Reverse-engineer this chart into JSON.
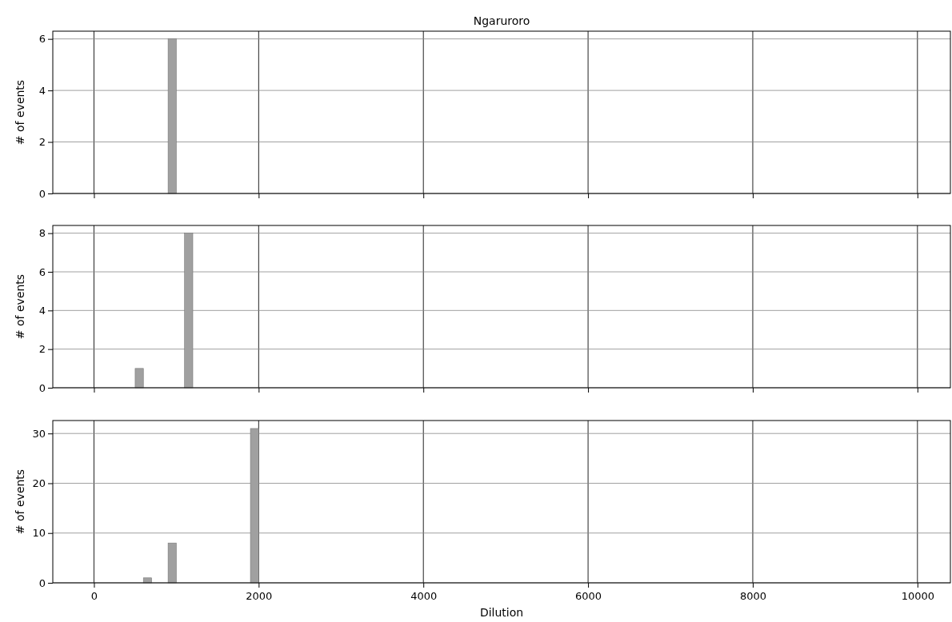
{
  "chart_data": [
    {
      "type": "histogram",
      "title": "Ngaruroro",
      "ylabel": "# of events",
      "bins": [
        900,
        1000
      ],
      "values": [
        6
      ],
      "color": "#a0a0a0",
      "xlim": [
        -500,
        10400
      ],
      "xticks": [
        0,
        2000,
        4000,
        6000,
        8000,
        10000
      ],
      "ylim": [
        0,
        6.3
      ],
      "yticks": [
        0,
        2,
        4,
        6
      ],
      "grid": true,
      "tick_labels": "y"
    },
    {
      "type": "histogram",
      "ylabel": "# of events",
      "bins": [
        500,
        600,
        700,
        800,
        900,
        1000,
        1100,
        1200
      ],
      "values": [
        1,
        0,
        0,
        0,
        0,
        0,
        8
      ],
      "color": "#a0a0a0",
      "xlim": [
        -500,
        10400
      ],
      "xticks": [
        0,
        2000,
        4000,
        6000,
        8000,
        10000
      ],
      "ylim": [
        0,
        8.4
      ],
      "yticks": [
        0,
        2,
        4,
        6,
        8
      ],
      "grid": true,
      "tick_labels": "y"
    },
    {
      "type": "histogram",
      "xlabel": "Dilution",
      "ylabel": "# of events",
      "bins": [
        600,
        700,
        800,
        900,
        1000,
        1100,
        1200,
        1300,
        1400,
        1500,
        1600,
        1700,
        1800,
        1900,
        2000
      ],
      "values": [
        1,
        0,
        0,
        8,
        0,
        0,
        0,
        0,
        0,
        0,
        0,
        0,
        0,
        31
      ],
      "color": "#a0a0a0",
      "xlim": [
        -500,
        10400
      ],
      "xticks": [
        0,
        2000,
        4000,
        6000,
        8000,
        10000
      ],
      "ylim": [
        0,
        32.6
      ],
      "yticks": [
        0,
        10,
        20,
        30
      ],
      "grid": true
    }
  ]
}
